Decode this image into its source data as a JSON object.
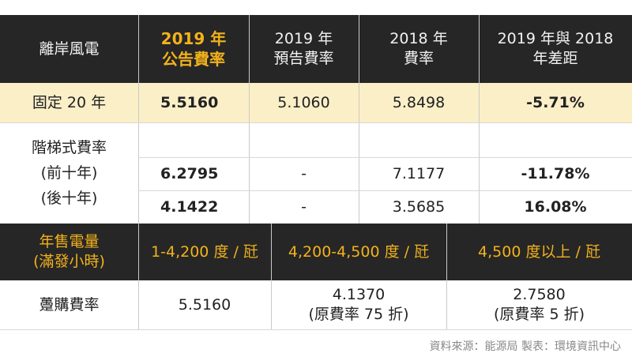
{
  "header": {
    "col1": "離岸風電",
    "col2_line1": "2019 年",
    "col2_line2": "公告費率",
    "col3_line1": "2019 年",
    "col3_line2": "預告費率",
    "col4_line1": "2018 年",
    "col4_line2": "費率",
    "col5_line1": "2019 年與 2018",
    "col5_line2": "年差距"
  },
  "fixed_row": {
    "label": "固定 20 年",
    "v2019_announced": "5.5160",
    "v2019_forecast": "5.1060",
    "v2018": "5.8498",
    "diff": "-5.71%"
  },
  "tiered": {
    "label_line1": "階梯式費率",
    "label_line2": "(前十年)",
    "label_line3": "(後十年)",
    "first_ten": {
      "v2019_announced": "6.2795",
      "v2019_forecast": "-",
      "v2018": "7.1177",
      "diff": "-11.78%"
    },
    "last_ten": {
      "v2019_announced": "4.1422",
      "v2019_forecast": "-",
      "v2018": "3.5685",
      "diff": "16.08%"
    }
  },
  "sales_header": {
    "label_line1": "年售電量",
    "label_line2": "(滿發小時)",
    "range1": "1-4,200 度 / 瓩",
    "range2": "4,200-4,500 度 / 瓩",
    "range3": "4,500 度以上 / 瓩"
  },
  "wholesale": {
    "label": "躉購費率",
    "range1_value": "5.5160",
    "range2_value": "4.1370",
    "range2_note": "(原費率 75 折)",
    "range3_value": "2.7580",
    "range3_note": "(原費率 5 折)"
  },
  "source": "資料來源：能源局 製表：環境資訊中心",
  "colors": {
    "dark": "#262626",
    "gold": "#f3b21b",
    "cream": "#fbefc8"
  }
}
